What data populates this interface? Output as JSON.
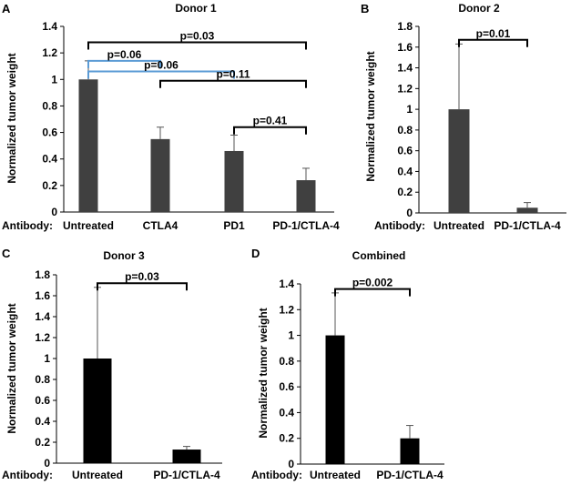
{
  "chart_data": [
    {
      "panel": "A",
      "type": "bar",
      "title": "Donor 1",
      "ylabel": "Normalized tumor weight",
      "xlabel": "Antibody:",
      "ylim": [
        0,
        1.4
      ],
      "yticks": [
        "0",
        "0.2",
        "0.4",
        "0.6",
        "0.8",
        "1",
        "1.2",
        "1.4"
      ],
      "categories": [
        "Untreated",
        "CTLA4",
        "PD1",
        "PD-1/CTLA-4"
      ],
      "values": [
        1.0,
        0.55,
        0.46,
        0.24
      ],
      "errors": [
        0.14,
        0.09,
        0.12,
        0.09
      ],
      "bar_color": "#404040",
      "annotations": [
        {
          "from": 0,
          "to": 3,
          "label": "p=0.03",
          "level": 1.28,
          "color": "#000000"
        },
        {
          "from": 0,
          "to": 1,
          "label": "p=0.06",
          "level": 1.14,
          "color": "#5b9bd5"
        },
        {
          "from": 0,
          "to": 2,
          "label": "p=0.06",
          "level": 1.06,
          "color": "#5b9bd5"
        },
        {
          "from": 1,
          "to": 3,
          "label": "p=0.11",
          "level": 0.99,
          "color": "#000000"
        },
        {
          "from": 2,
          "to": 3,
          "label": "p=0.41",
          "level": 0.64,
          "color": "#000000"
        }
      ]
    },
    {
      "panel": "B",
      "type": "bar",
      "title": "Donor 2",
      "ylabel": "Normalized tumor weight",
      "xlabel": "Antibody:",
      "ylim": [
        0,
        1.8
      ],
      "yticks": [
        "0",
        "0.2",
        "0.4",
        "0.6",
        "0.8",
        "1",
        "1.2",
        "1.4",
        "1.6",
        "1.8"
      ],
      "categories": [
        "Untreated",
        "PD-1/CTLA-4"
      ],
      "values": [
        1.0,
        0.05
      ],
      "errors": [
        0.63,
        0.05
      ],
      "bar_color": "#404040",
      "annotations": [
        {
          "from": 0,
          "to": 1,
          "label": "p=0.01",
          "level": 1.67,
          "color": "#000000"
        }
      ]
    },
    {
      "panel": "C",
      "type": "bar",
      "title": "Donor 3",
      "ylabel": "Normalized tumor weight",
      "xlabel": "Antibody:",
      "ylim": [
        0,
        1.8
      ],
      "yticks": [
        "0",
        "0.2",
        "0.4",
        "0.6",
        "0.8",
        "1",
        "1.2",
        "1.4",
        "1.6",
        "1.8"
      ],
      "categories": [
        "Untreated",
        "PD-1/CTLA-4"
      ],
      "values": [
        1.0,
        0.13
      ],
      "errors": [
        0.68,
        0.03
      ],
      "bar_color": "#000000",
      "annotations": [
        {
          "from": 0,
          "to": 1,
          "label": "p=0.03",
          "level": 1.72,
          "color": "#000000"
        }
      ]
    },
    {
      "panel": "D",
      "type": "bar",
      "title": "Combined",
      "ylabel": "Normalized tumor weight",
      "xlabel": "Antibody:",
      "ylim": [
        0,
        1.4
      ],
      "yticks": [
        "0",
        "0.2",
        "0.4",
        "0.6",
        "0.8",
        "1",
        "1.2",
        "1.4"
      ],
      "categories": [
        "Untreated",
        "PD-1/CTLA-4"
      ],
      "values": [
        1.0,
        0.2
      ],
      "errors": [
        0.33,
        0.1
      ],
      "bar_color": "#000000",
      "annotations": [
        {
          "from": 0,
          "to": 1,
          "label": "p=0.002",
          "level": 1.36,
          "color": "#000000"
        }
      ]
    }
  ]
}
